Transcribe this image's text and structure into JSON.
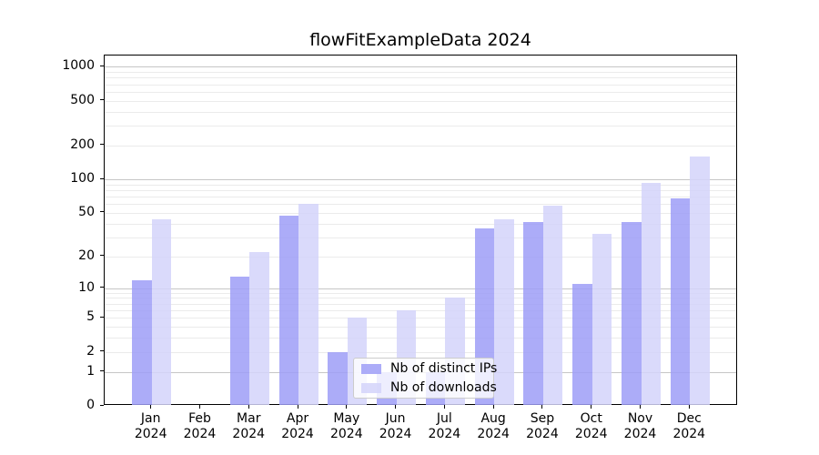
{
  "title": "flowFitExampleData 2024",
  "chart_data": {
    "type": "bar",
    "title": "flowFitExampleData 2024",
    "categories": [
      "Jan 2024",
      "Feb 2024",
      "Mar 2024",
      "Apr 2024",
      "May 2024",
      "Jun 2024",
      "Jul 2024",
      "Aug 2024",
      "Sep 2024",
      "Oct 2024",
      "Nov 2024",
      "Dec 2024"
    ],
    "x_tick_months": [
      "Jan",
      "Feb",
      "Mar",
      "Apr",
      "May",
      "Jun",
      "Jul",
      "Aug",
      "Sep",
      "Oct",
      "Nov",
      "Dec"
    ],
    "x_tick_year": "2024",
    "series": [
      {
        "name": "Nb of distinct IPs",
        "color": "#9d9df7",
        "values": [
          12,
          0,
          13,
          47,
          2,
          1,
          1,
          36,
          41,
          11,
          41,
          68
        ]
      },
      {
        "name": "Nb of downloads",
        "color": "#d4d4fa",
        "values": [
          44,
          0,
          22,
          60,
          5,
          6,
          8,
          44,
          58,
          32,
          93,
          160
        ]
      }
    ],
    "y_scale": "log1p",
    "y_ticks": [
      0,
      1,
      2,
      5,
      10,
      20,
      50,
      100,
      200,
      500,
      1000
    ],
    "y_major_gridlines": [
      1,
      10,
      100,
      1000
    ],
    "ylim": [
      0,
      1257
    ],
    "grid": true,
    "legend_position": "lower center",
    "bar_opacity": 0.85,
    "colors": {
      "major_grid": "#c6c6c6",
      "minor_grid": "#ebebeb",
      "axis": "#000000",
      "text": "#000000"
    }
  }
}
